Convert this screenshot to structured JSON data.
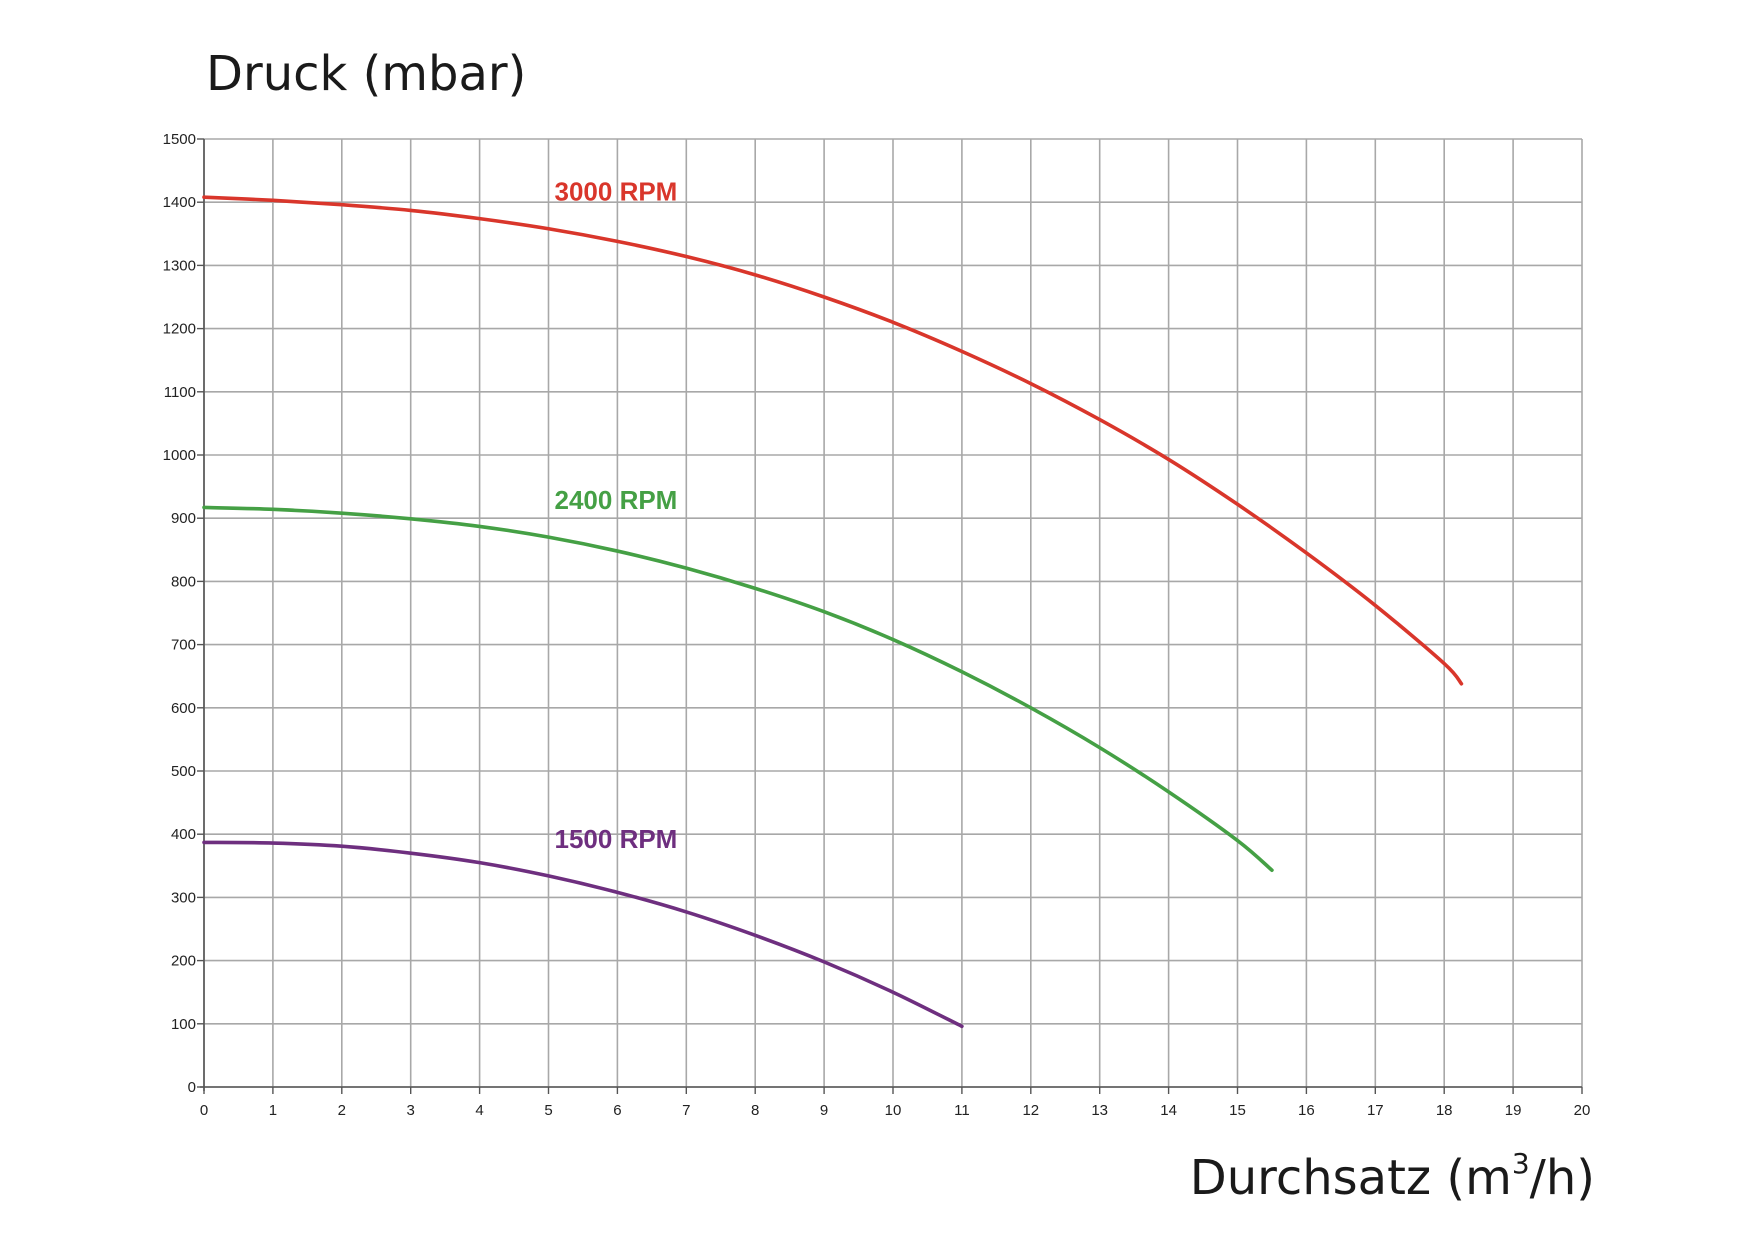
{
  "chart_data": {
    "type": "line",
    "title": "",
    "ylabel": "Druck (mbar)",
    "xlabel_main": "Durchsatz (m",
    "xlabel_sup": "3",
    "xlabel_tail": "/h)",
    "xlim": [
      0,
      20
    ],
    "ylim": [
      0,
      1500
    ],
    "xticks": [
      0,
      1,
      2,
      3,
      4,
      5,
      6,
      7,
      8,
      9,
      10,
      11,
      12,
      13,
      14,
      15,
      16,
      17,
      18,
      19,
      20
    ],
    "yticks": [
      0,
      100,
      200,
      300,
      400,
      500,
      600,
      700,
      800,
      900,
      1000,
      1100,
      1200,
      1300,
      1400,
      1500
    ],
    "grid": true,
    "series": [
      {
        "name": "3000 RPM",
        "color": "#d9362b",
        "x": [
          0,
          1,
          2,
          3,
          4,
          5,
          6,
          7,
          8,
          9,
          10,
          11,
          12,
          13,
          14,
          15,
          16,
          17,
          18,
          18.25
        ],
        "y": [
          1408,
          1403,
          1396,
          1387,
          1374,
          1358,
          1338,
          1314,
          1285,
          1250,
          1210,
          1164,
          1113,
          1056,
          993,
          922,
          845,
          762,
          670,
          638
        ]
      },
      {
        "name": "2400 RPM",
        "color": "#45a045",
        "x": [
          0,
          1,
          2,
          3,
          4,
          5,
          6,
          7,
          8,
          9,
          10,
          11,
          12,
          13,
          14,
          15,
          15.5
        ],
        "y": [
          917,
          914,
          908,
          899,
          887,
          870,
          848,
          821,
          789,
          752,
          708,
          657,
          600,
          537,
          467,
          390,
          343
        ]
      },
      {
        "name": "1500 RPM",
        "color": "#6e2f7f",
        "x": [
          0,
          1,
          2,
          3,
          4,
          5,
          6,
          7,
          8,
          9,
          10,
          11
        ],
        "y": [
          387,
          386,
          381,
          370,
          355,
          334,
          308,
          277,
          240,
          198,
          150,
          96
        ]
      }
    ]
  }
}
